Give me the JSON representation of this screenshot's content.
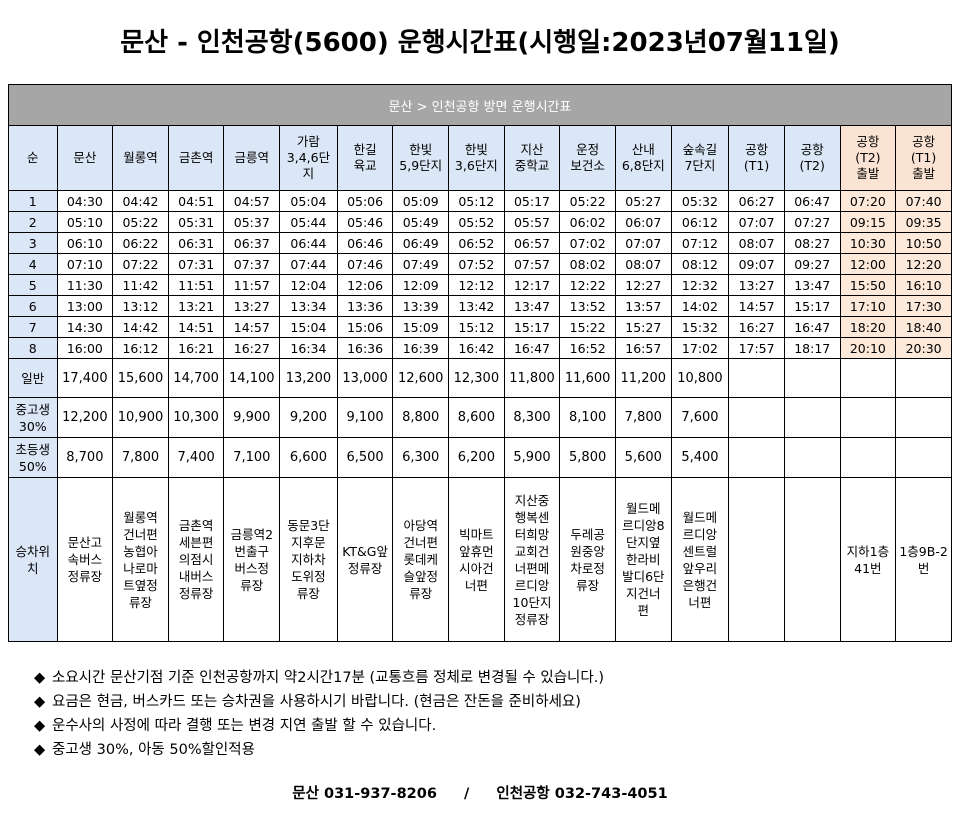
{
  "title": "문산 - 인천공항(5600) 운행시간표(시행일:2023년07월11일)",
  "banner": "문산 > 인천공항 방면 운행시간표",
  "columns": [
    "순",
    "문산",
    "월롱역",
    "금촌역",
    "금릉역",
    "가람\n3,4,6단\n지",
    "한길\n육교",
    "한빛\n5,9단지",
    "한빛\n3,6단지",
    "지산\n중학교",
    "운정\n보건소",
    "산내\n6,8단지",
    "숲속길\n7단지",
    "공항\n(T1)",
    "공항\n(T2)",
    "공항\n(T2)\n출발",
    "공항\n(T1)\n출발"
  ],
  "timetable": [
    [
      "1",
      "04:30",
      "04:42",
      "04:51",
      "04:57",
      "05:04",
      "05:06",
      "05:09",
      "05:12",
      "05:17",
      "05:22",
      "05:27",
      "05:32",
      "06:27",
      "06:47",
      "07:20",
      "07:40"
    ],
    [
      "2",
      "05:10",
      "05:22",
      "05:31",
      "05:37",
      "05:44",
      "05:46",
      "05:49",
      "05:52",
      "05:57",
      "06:02",
      "06:07",
      "06:12",
      "07:07",
      "07:27",
      "09:15",
      "09:35"
    ],
    [
      "3",
      "06:10",
      "06:22",
      "06:31",
      "06:37",
      "06:44",
      "06:46",
      "06:49",
      "06:52",
      "06:57",
      "07:02",
      "07:07",
      "07:12",
      "08:07",
      "08:27",
      "10:30",
      "10:50"
    ],
    [
      "4",
      "07:10",
      "07:22",
      "07:31",
      "07:37",
      "07:44",
      "07:46",
      "07:49",
      "07:52",
      "07:57",
      "08:02",
      "08:07",
      "08:12",
      "09:07",
      "09:27",
      "12:00",
      "12:20"
    ],
    [
      "5",
      "11:30",
      "11:42",
      "11:51",
      "11:57",
      "12:04",
      "12:06",
      "12:09",
      "12:12",
      "12:17",
      "12:22",
      "12:27",
      "12:32",
      "13:27",
      "13:47",
      "15:50",
      "16:10"
    ],
    [
      "6",
      "13:00",
      "13:12",
      "13:21",
      "13:27",
      "13:34",
      "13:36",
      "13:39",
      "13:42",
      "13:47",
      "13:52",
      "13:57",
      "14:02",
      "14:57",
      "15:17",
      "17:10",
      "17:30"
    ],
    [
      "7",
      "14:30",
      "14:42",
      "14:51",
      "14:57",
      "15:04",
      "15:06",
      "15:09",
      "15:12",
      "15:17",
      "15:22",
      "15:27",
      "15:32",
      "16:27",
      "16:47",
      "18:20",
      "18:40"
    ],
    [
      "8",
      "16:00",
      "16:12",
      "16:21",
      "16:27",
      "16:34",
      "16:36",
      "16:39",
      "16:42",
      "16:47",
      "16:52",
      "16:57",
      "17:02",
      "17:57",
      "18:17",
      "20:10",
      "20:30"
    ]
  ],
  "fares": [
    [
      "일반",
      "17,400",
      "15,600",
      "14,700",
      "14,100",
      "13,200",
      "13,000",
      "12,600",
      "12,300",
      "11,800",
      "11,600",
      "11,200",
      "10,800",
      "",
      "",
      "",
      ""
    ],
    [
      "중고생\n30%",
      "12,200",
      "10,900",
      "10,300",
      "9,900",
      "9,200",
      "9,100",
      "8,800",
      "8,600",
      "8,300",
      "8,100",
      "7,800",
      "7,600",
      "",
      "",
      "",
      ""
    ],
    [
      "초등생\n50%",
      "8,700",
      "7,800",
      "7,400",
      "7,100",
      "6,600",
      "6,500",
      "6,300",
      "6,200",
      "5,900",
      "5,800",
      "5,600",
      "5,400",
      "",
      "",
      "",
      ""
    ]
  ],
  "boarding": [
    "승차위\n치",
    "문산고\n속버스\n정류장",
    "월롱역\n건너편\n농협아\n나로마\n트옆정\n류장",
    "금촌역\n세븐편\n의점시\n내버스\n정류장",
    "금릉역2\n번출구\n버스정\n류장",
    "동문3단\n지후문\n지하차\n도위정\n류장",
    "KT&G앞\n정류장",
    "아당역\n건너편\n롯데케\n슬앞정\n류장",
    "빅마트\n앞휴먼\n시아건\n너편",
    "지산중\n행복센\n터희망\n교회건\n너편메\n르디앙\n10단지\n정류장",
    "두레공\n원중앙\n차로정\n류장",
    "월드메\n르디앙8\n단지옆\n한라비\n발디6단\n지건너\n편",
    "월드메\n르디앙\n센트럴\n앞우리\n은행건\n너편",
    "",
    "",
    "지하1층\n41번",
    "1층9B-2\n번"
  ],
  "notes": [
    "소요시간 문산기점 기준 인천공항까지 약2시간17분 (교통흐름 정체로 변경될 수 있습니다.)",
    "요금은 현금, 버스카드 또는 승차권을 사용하시기 바랍니다. (현금은 잔돈을 준비하세요)",
    "운수사의 사정에 따라 결행 또는 변경 지연 출발 할 수 있습니다.",
    "중고생 30%, 아동 50%할인적용"
  ],
  "note_bullet": "◆",
  "contact": {
    "munsan": "문산 031-937-8206",
    "separator": "/",
    "airport": "인천공항 032-743-4051"
  },
  "colors": {
    "banner": "#a6a6a6",
    "header": "#dbe7f7",
    "airport_header": "#fbe3d3",
    "airport_cell": "#fde9d9"
  }
}
